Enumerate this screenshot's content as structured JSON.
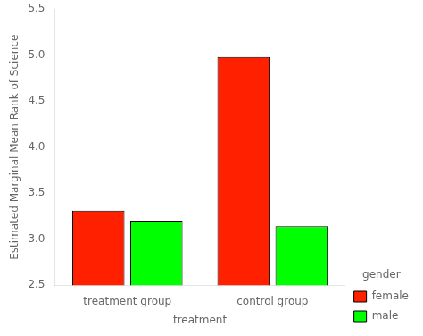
{
  "chart_data": {
    "type": "bar",
    "xlabel": "treatment",
    "ylabel": "Estimated Marginal Mean Rank of Science",
    "categories": [
      "treatment group",
      "control group"
    ],
    "series": [
      {
        "name": "female",
        "color": "#FF2000",
        "values": [
          3.31,
          4.98
        ]
      },
      {
        "name": "male",
        "color": "#00FF00",
        "values": [
          3.2,
          3.14
        ]
      }
    ],
    "ylim": [
      2.5,
      5.5
    ],
    "yticks": [
      2.5,
      {
        "value": 3,
        "label": "3.0"
      },
      3.5,
      {
        "value": 4,
        "label": "4.0"
      },
      4.5,
      {
        "value": 5,
        "label": "5.0"
      },
      5.5
    ],
    "legend": "lower right",
    "legend_title": "gender",
    "grid": false
  }
}
